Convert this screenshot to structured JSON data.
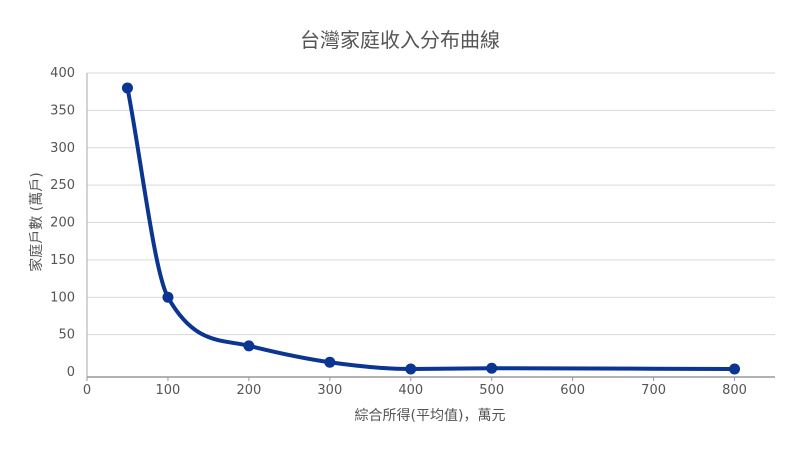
{
  "chart_data": {
    "type": "line",
    "title": "台灣家庭收入分布曲線",
    "xlabel": "綜合所得(平均值)，萬元",
    "ylabel": "家庭戶數 (萬戶)",
    "xlim": [
      0,
      850
    ],
    "ylim": [
      0,
      400
    ],
    "x_ticks": [
      0,
      100,
      200,
      300,
      400,
      500,
      600,
      700,
      800
    ],
    "y_ticks": [
      0,
      50,
      100,
      150,
      200,
      250,
      300,
      350,
      400
    ],
    "grid": true,
    "smooth": true,
    "series": [
      {
        "color": "#0a3590",
        "points": [
          {
            "x": 50,
            "y": 380
          },
          {
            "x": 100,
            "y": 100
          },
          {
            "x": 200,
            "y": 35
          },
          {
            "x": 300,
            "y": 13
          },
          {
            "x": 400,
            "y": 4
          },
          {
            "x": 500,
            "y": 5
          },
          {
            "x": 800,
            "y": 4
          }
        ]
      }
    ]
  }
}
